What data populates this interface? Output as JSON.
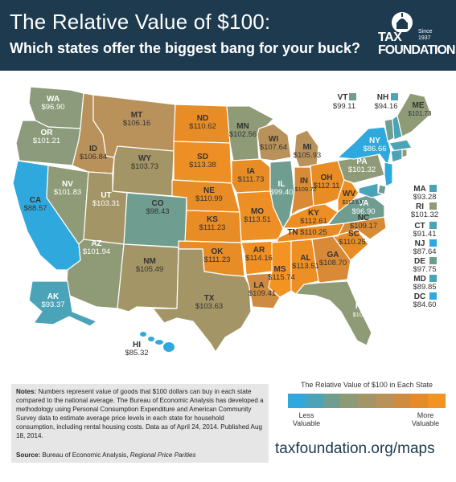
{
  "header": {
    "title": "The Relative Value of $100:",
    "subtitle": "Which states offer the biggest bang for your buck?",
    "logo_line1": "TAX",
    "logo_line2": "FOUNDATION",
    "logo_since": "Since",
    "logo_year": "1937"
  },
  "colors": {
    "header_bg": "#1d3a4f",
    "scale": [
      "#2fa9dd",
      "#4ba3b8",
      "#6f9d8f",
      "#8c9a76",
      "#a39566",
      "#b8925a",
      "#cf8b3f",
      "#e58c28",
      "#f29322"
    ]
  },
  "states": [
    {
      "abbr": "WA",
      "value": "$96.90"
    },
    {
      "abbr": "OR",
      "value": "$101.21"
    },
    {
      "abbr": "CA",
      "value": "$88.57"
    },
    {
      "abbr": "NV",
      "value": "$101.83"
    },
    {
      "abbr": "ID",
      "value": "$106.84"
    },
    {
      "abbr": "MT",
      "value": "$106.16"
    },
    {
      "abbr": "WY",
      "value": "$103.73"
    },
    {
      "abbr": "UT",
      "value": "$103.31"
    },
    {
      "abbr": "AZ",
      "value": "$101.94"
    },
    {
      "abbr": "CO",
      "value": "$98.43"
    },
    {
      "abbr": "NM",
      "value": "$105.49"
    },
    {
      "abbr": "ND",
      "value": "$110.62"
    },
    {
      "abbr": "SD",
      "value": "$113.38"
    },
    {
      "abbr": "NE",
      "value": "$110.99"
    },
    {
      "abbr": "KS",
      "value": "$111.23"
    },
    {
      "abbr": "OK",
      "value": "$111.23"
    },
    {
      "abbr": "TX",
      "value": "$103.63"
    },
    {
      "abbr": "MN",
      "value": "$102.56"
    },
    {
      "abbr": "IA",
      "value": "$111.73"
    },
    {
      "abbr": "MO",
      "value": "$113.51"
    },
    {
      "abbr": "AR",
      "value": "$114.16"
    },
    {
      "abbr": "LA",
      "value": "$109.41"
    },
    {
      "abbr": "WI",
      "value": "$107.64"
    },
    {
      "abbr": "IL",
      "value": "$99.40"
    },
    {
      "abbr": "MI",
      "value": "$105.93"
    },
    {
      "abbr": "IN",
      "value": "$109.72"
    },
    {
      "abbr": "OH",
      "value": "$112.11"
    },
    {
      "abbr": "KY",
      "value": "$112.61"
    },
    {
      "abbr": "TN",
      "value": "$110.25"
    },
    {
      "abbr": "MS",
      "value": "$115.74"
    },
    {
      "abbr": "AL",
      "value": "$113.51"
    },
    {
      "abbr": "GA",
      "value": "$108.70"
    },
    {
      "abbr": "FL",
      "value": "$101.21"
    },
    {
      "abbr": "SC",
      "value": "$110.25"
    },
    {
      "abbr": "NC",
      "value": "$109.17"
    },
    {
      "abbr": "VA",
      "value": "$96.90"
    },
    {
      "abbr": "WV",
      "value": "$112.69"
    },
    {
      "abbr": "PA",
      "value": "$101.32"
    },
    {
      "abbr": "NY",
      "value": "$86.66"
    },
    {
      "abbr": "VT",
      "value": "$99.11"
    },
    {
      "abbr": "NH",
      "value": "$94.16"
    },
    {
      "abbr": "ME",
      "value": "$101.73"
    },
    {
      "abbr": "AK",
      "value": "$93.37"
    },
    {
      "abbr": "HI",
      "value": "$85.32"
    }
  ],
  "side_list": [
    {
      "abbr": "MA",
      "value": "$93.28"
    },
    {
      "abbr": "RI",
      "value": "$101.32"
    },
    {
      "abbr": "CT",
      "value": "$91.41"
    },
    {
      "abbr": "NJ",
      "value": "$87.64"
    },
    {
      "abbr": "DE",
      "value": "$97.75"
    },
    {
      "abbr": "MD",
      "value": "$89.85"
    },
    {
      "abbr": "DC",
      "value": "$84.60"
    }
  ],
  "notes": {
    "label": "Notes:",
    "text": "Numbers represent value of goods that $100 dollars can buy in each state compared to the national average. The Bureau of Economic Analysis has developed a methodology using Personal Consumption Expenditure and American Community Survey data to estimate average price levels in each state for household consumption, including rental housing costs.  Data as of April 24, 2014. Published Aug 18, 2014.",
    "source_label": "Source:",
    "source_text": "Bureau of Economic Analysis,",
    "source_italic": "Regional Price Parities"
  },
  "legend": {
    "title": "The Relative Value of $100 in Each State",
    "less": "Less Valuable",
    "more": "More Valuable"
  },
  "url": "taxfoundation.org/maps"
}
